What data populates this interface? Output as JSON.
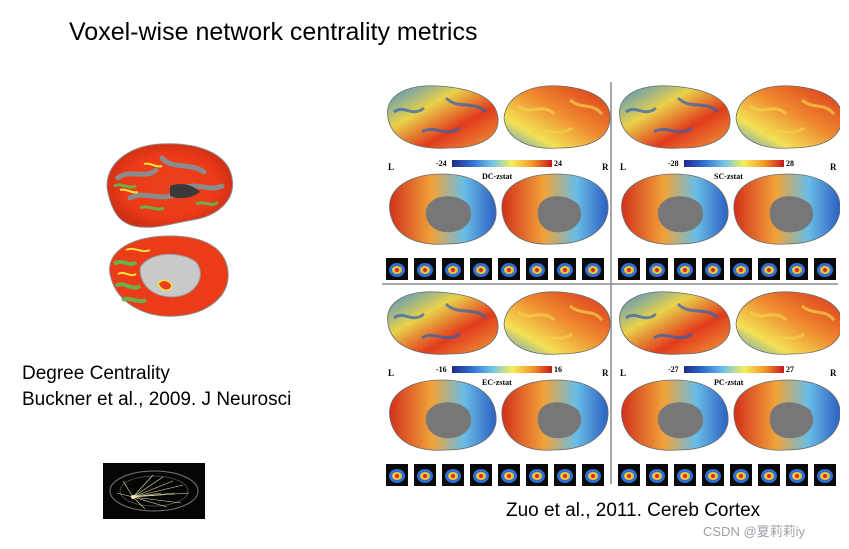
{
  "slide": {
    "title": "Voxel-wise network centrality metrics",
    "left_citation": {
      "line1": "Degree Centrality",
      "line2": "Buckner et al., 2009. J Neurosci"
    },
    "right_citation": "Zuo et al., 2011. Cereb Cortex",
    "watermark": "CSDN @夏莉莉iy"
  },
  "figure": {
    "hemisphere_left": "L",
    "hemisphere_right": "R",
    "panels": [
      {
        "metric_label": "DC-zstat",
        "min_label": "-24",
        "max_label": "24"
      },
      {
        "metric_label": "SC-zstat",
        "min_label": "-28",
        "max_label": "28"
      },
      {
        "metric_label": "EC-zstat",
        "min_label": "-16",
        "max_label": "16"
      },
      {
        "metric_label": "PC-zstat",
        "min_label": "-27",
        "max_label": "27"
      }
    ],
    "colorbar_colors": [
      "#1f2a8a",
      "#2f6fd0",
      "#6fc3e8",
      "#f4ee5a",
      "#f39a2c",
      "#c8181a"
    ]
  }
}
